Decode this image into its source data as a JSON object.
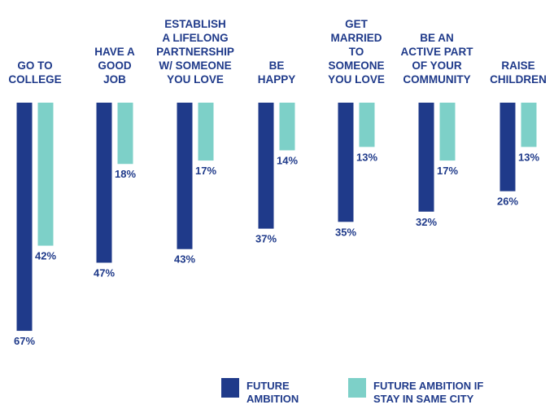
{
  "chart_data": {
    "type": "bar",
    "orientation": "vertical-downward",
    "grid": false,
    "legend_position": "bottom",
    "ylim": [
      0,
      67
    ],
    "categories": [
      [
        "GO TO",
        "COLLEGE"
      ],
      [
        "HAVE A",
        "GOOD",
        "JOB"
      ],
      [
        "ESTABLISH",
        "A LIFELONG",
        "PARTNERSHIP",
        "W/ SOMEONE",
        "YOU LOVE"
      ],
      [
        "BE",
        "HAPPY"
      ],
      [
        "GET",
        "MARRIED",
        "TO",
        "SOMEONE",
        "YOU LOVE"
      ],
      [
        "BE AN",
        "ACTIVE PART",
        "OF YOUR",
        "COMMUNITY"
      ],
      [
        "RAISE",
        "CHILDREN"
      ]
    ],
    "series": [
      {
        "name": "FUTURE AMBITION",
        "legend_lines": [
          "FUTURE",
          "AMBITION"
        ],
        "color": "#1f3a8a",
        "values": [
          67,
          47,
          43,
          37,
          35,
          32,
          26
        ],
        "labels": [
          "67%",
          "47%",
          "43%",
          "37%",
          "35%",
          "32%",
          "26%"
        ]
      },
      {
        "name": "FUTURE AMBITION IF STAY IN SAME CITY",
        "legend_lines": [
          "FUTURE AMBITION IF",
          "STAY IN SAME CITY"
        ],
        "color": "#7dd0c8",
        "values": [
          42,
          18,
          17,
          14,
          13,
          17,
          13
        ],
        "labels": [
          "42%",
          "18%",
          "17%",
          "14%",
          "13%",
          "17%",
          "13%"
        ]
      }
    ]
  }
}
